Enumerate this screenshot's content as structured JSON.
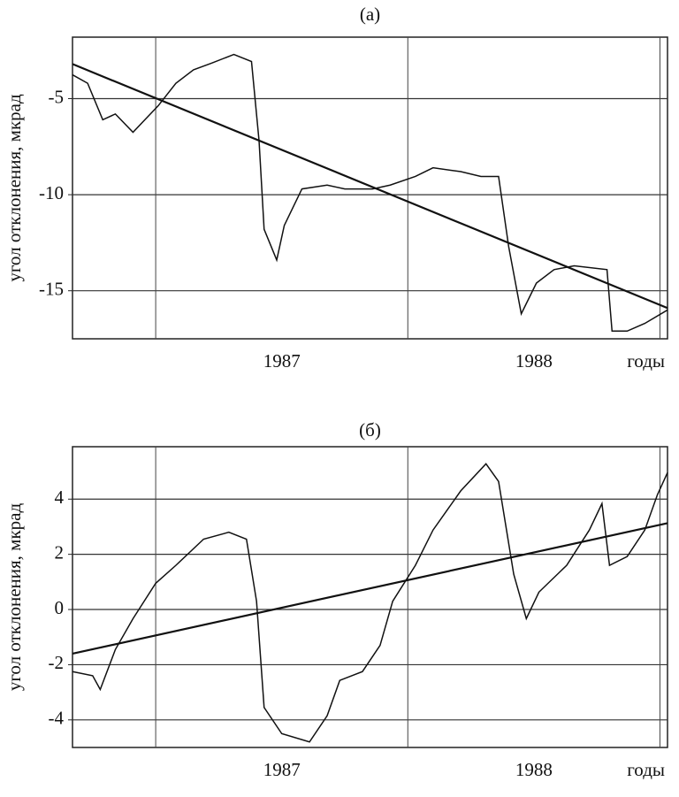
{
  "chart_data": [
    {
      "type": "line",
      "title": "(а)",
      "y_label": "угол отклонения, мкрад",
      "x_label": "годы",
      "xlim": [
        1986.67,
        1989.03
      ],
      "xticks": [
        {
          "value": 1987.5,
          "label": "1987"
        },
        {
          "value": 1988.5,
          "label": "1988"
        }
      ],
      "xgrid": [
        1987,
        1988,
        1989
      ],
      "ylim": [
        -17.5,
        -1.8
      ],
      "yticks": [
        -15,
        -10,
        -5
      ],
      "grid": true,
      "series": [
        {
          "color": "#111111",
          "x": [
            1986.67,
            1986.73,
            1986.79,
            1986.84,
            1986.91,
            1986.96,
            1987.01,
            1987.08,
            1987.15,
            1987.22,
            1987.31,
            1987.38,
            1987.41,
            1987.43,
            1987.48,
            1987.51,
            1987.58,
            1987.68,
            1987.75,
            1987.86,
            1987.93,
            1988.03,
            1988.1,
            1988.21,
            1988.29,
            1988.36,
            1988.4,
            1988.45,
            1988.51,
            1988.58,
            1988.66,
            1988.79,
            1988.81,
            1988.87,
            1988.94,
            1989.03
          ],
          "values": [
            -3.76,
            -4.2,
            -6.1,
            -5.8,
            -6.75,
            -6.06,
            -5.37,
            -4.2,
            -3.5,
            -3.16,
            -2.7,
            -3.07,
            -7.2,
            -11.8,
            -13.4,
            -11.6,
            -9.7,
            -9.5,
            -9.7,
            -9.7,
            -9.5,
            -9.05,
            -8.6,
            -8.8,
            -9.05,
            -9.05,
            -12.7,
            -16.2,
            -14.6,
            -13.9,
            -13.7,
            -13.9,
            -17.1,
            -17.1,
            -16.7,
            -16.0
          ]
        },
        {
          "color": "#111111",
          "x": [
            1986.67,
            1989.03
          ],
          "values": [
            -3.2,
            -15.9
          ]
        }
      ]
    },
    {
      "type": "line",
      "title": "(б)",
      "y_label": "угол отклонения, мкрад",
      "x_label": "годы",
      "xlim": [
        1986.67,
        1989.03
      ],
      "xticks": [
        {
          "value": 1987.5,
          "label": "1987"
        },
        {
          "value": 1988.5,
          "label": "1988"
        }
      ],
      "xgrid": [
        1987,
        1988,
        1989
      ],
      "ylim": [
        -5,
        5.9
      ],
      "yticks": [
        -4,
        -2,
        0,
        2,
        4
      ],
      "grid": true,
      "series": [
        {
          "color": "#111111",
          "x": [
            1986.67,
            1986.75,
            1986.78,
            1986.84,
            1986.91,
            1987.0,
            1987.08,
            1987.19,
            1987.29,
            1987.36,
            1987.4,
            1987.43,
            1987.5,
            1987.61,
            1987.68,
            1987.73,
            1987.82,
            1987.89,
            1987.94,
            1988.03,
            1988.1,
            1988.21,
            1988.31,
            1988.36,
            1988.42,
            1988.47,
            1988.52,
            1988.63,
            1988.72,
            1988.77,
            1988.8,
            1988.87,
            1988.94,
            1988.99,
            1989.03
          ],
          "values": [
            -2.25,
            -2.4,
            -2.9,
            -1.45,
            -0.33,
            0.95,
            1.6,
            2.55,
            2.8,
            2.55,
            0.3,
            -3.55,
            -4.5,
            -4.8,
            -3.85,
            -2.57,
            -2.25,
            -1.3,
            0.3,
            1.6,
            2.88,
            4.3,
            5.28,
            4.64,
            1.28,
            -0.33,
            0.63,
            1.6,
            2.88,
            3.84,
            1.6,
            1.92,
            2.88,
            4.16,
            4.96
          ]
        },
        {
          "color": "#111111",
          "x": [
            1986.67,
            1989.03
          ],
          "values": [
            -1.6,
            3.13
          ]
        }
      ]
    }
  ]
}
